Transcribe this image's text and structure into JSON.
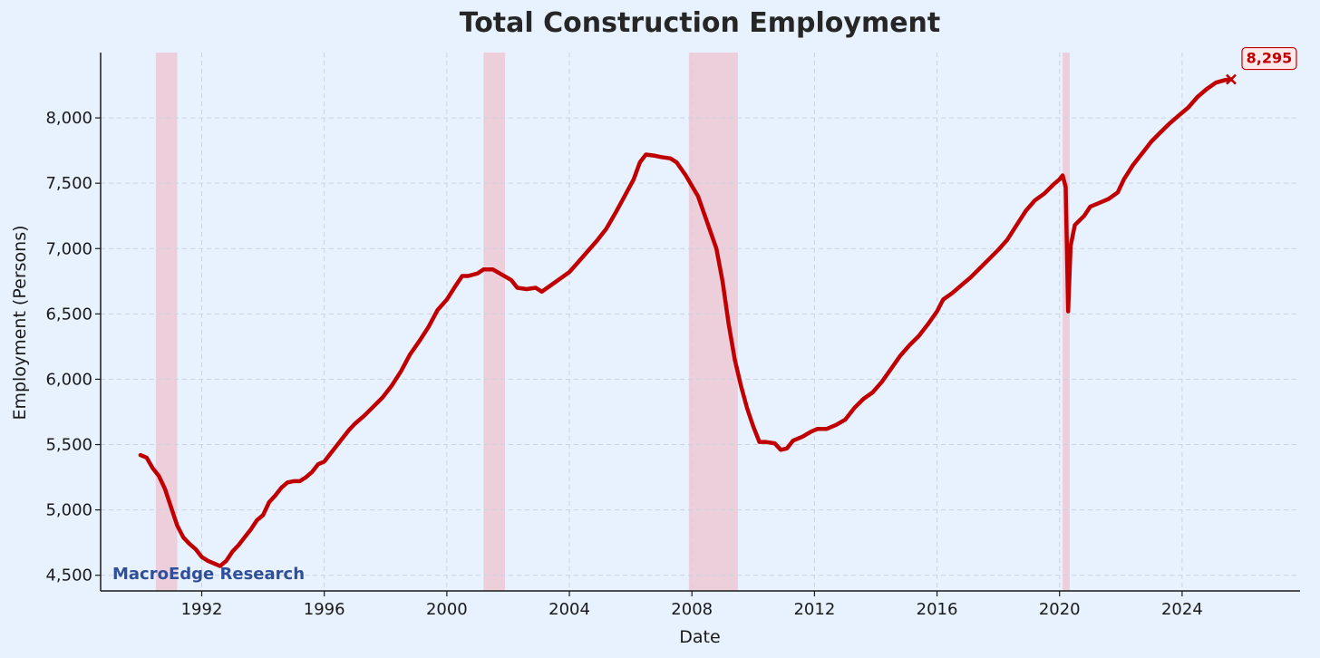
{
  "chart_data": {
    "type": "line",
    "title": "Total Construction Employment",
    "xlabel": "Date",
    "ylabel": "Employment (Persons)",
    "xlim": [
      1988.7,
      2027.85
    ],
    "ylim": [
      4380,
      8500
    ],
    "x_ticks": [
      1992,
      1996,
      2000,
      2004,
      2008,
      2012,
      2016,
      2020,
      2024
    ],
    "x_tick_labels": [
      "1992",
      "1996",
      "2000",
      "2004",
      "2008",
      "2012",
      "2016",
      "2020",
      "2024"
    ],
    "y_ticks": [
      4500,
      5000,
      5500,
      6000,
      6500,
      7000,
      7500,
      8000
    ],
    "y_tick_labels": [
      "4,500",
      "5,000",
      "5,500",
      "6,000",
      "6,500",
      "7,000",
      "7,500",
      "8,000"
    ],
    "grid": true,
    "recession_shading": [
      [
        1990.5,
        1991.2
      ],
      [
        2001.2,
        2001.9
      ],
      [
        2007.9,
        2009.5
      ],
      [
        2020.1,
        2020.33
      ]
    ],
    "watermark": "MacroEdge Research",
    "last_value_label": "8,295",
    "colors": {
      "line": "#c00000",
      "recession": "#f4a0ad",
      "background": "#e8f1fe"
    },
    "series": [
      {
        "values": [
          [
            1990.0,
            5420
          ],
          [
            1990.2,
            5400
          ],
          [
            1990.4,
            5320
          ],
          [
            1990.6,
            5260
          ],
          [
            1990.8,
            5160
          ],
          [
            1991.0,
            5020
          ],
          [
            1991.2,
            4880
          ],
          [
            1991.4,
            4790
          ],
          [
            1991.6,
            4740
          ],
          [
            1991.8,
            4700
          ],
          [
            1992.0,
            4640
          ],
          [
            1992.2,
            4610
          ],
          [
            1992.4,
            4590
          ],
          [
            1992.6,
            4570
          ],
          [
            1992.8,
            4610
          ],
          [
            1993.0,
            4680
          ],
          [
            1993.2,
            4730
          ],
          [
            1993.4,
            4790
          ],
          [
            1993.6,
            4850
          ],
          [
            1993.8,
            4920
          ],
          [
            1994.0,
            4960
          ],
          [
            1994.2,
            5060
          ],
          [
            1994.4,
            5110
          ],
          [
            1994.6,
            5170
          ],
          [
            1994.8,
            5210
          ],
          [
            1995.0,
            5220
          ],
          [
            1995.2,
            5220
          ],
          [
            1995.4,
            5250
          ],
          [
            1995.6,
            5290
          ],
          [
            1995.8,
            5350
          ],
          [
            1996.0,
            5370
          ],
          [
            1996.2,
            5430
          ],
          [
            1996.5,
            5520
          ],
          [
            1996.8,
            5610
          ],
          [
            1997.0,
            5660
          ],
          [
            1997.3,
            5720
          ],
          [
            1997.6,
            5790
          ],
          [
            1997.9,
            5860
          ],
          [
            1998.2,
            5950
          ],
          [
            1998.5,
            6060
          ],
          [
            1998.8,
            6190
          ],
          [
            1999.1,
            6290
          ],
          [
            1999.4,
            6400
          ],
          [
            1999.7,
            6530
          ],
          [
            2000.0,
            6610
          ],
          [
            2000.3,
            6720
          ],
          [
            2000.5,
            6790
          ],
          [
            2000.7,
            6790
          ],
          [
            2001.0,
            6810
          ],
          [
            2001.2,
            6840
          ],
          [
            2001.5,
            6840
          ],
          [
            2001.8,
            6800
          ],
          [
            2002.1,
            6760
          ],
          [
            2002.3,
            6700
          ],
          [
            2002.6,
            6690
          ],
          [
            2002.9,
            6700
          ],
          [
            2003.1,
            6670
          ],
          [
            2003.4,
            6720
          ],
          [
            2003.7,
            6770
          ],
          [
            2004.0,
            6820
          ],
          [
            2004.3,
            6900
          ],
          [
            2004.6,
            6980
          ],
          [
            2004.9,
            7060
          ],
          [
            2005.2,
            7150
          ],
          [
            2005.5,
            7270
          ],
          [
            2005.8,
            7400
          ],
          [
            2006.1,
            7530
          ],
          [
            2006.3,
            7660
          ],
          [
            2006.5,
            7720
          ],
          [
            2006.8,
            7710
          ],
          [
            2007.0,
            7700
          ],
          [
            2007.3,
            7690
          ],
          [
            2007.5,
            7660
          ],
          [
            2007.8,
            7560
          ],
          [
            2008.0,
            7480
          ],
          [
            2008.2,
            7400
          ],
          [
            2008.5,
            7200
          ],
          [
            2008.8,
            7000
          ],
          [
            2009.0,
            6750
          ],
          [
            2009.2,
            6420
          ],
          [
            2009.4,
            6150
          ],
          [
            2009.6,
            5950
          ],
          [
            2009.8,
            5780
          ],
          [
            2010.0,
            5640
          ],
          [
            2010.2,
            5520
          ],
          [
            2010.4,
            5520
          ],
          [
            2010.7,
            5510
          ],
          [
            2010.9,
            5460
          ],
          [
            2011.1,
            5470
          ],
          [
            2011.3,
            5530
          ],
          [
            2011.6,
            5560
          ],
          [
            2011.9,
            5600
          ],
          [
            2012.1,
            5620
          ],
          [
            2012.4,
            5620
          ],
          [
            2012.7,
            5650
          ],
          [
            2013.0,
            5690
          ],
          [
            2013.3,
            5780
          ],
          [
            2013.6,
            5850
          ],
          [
            2013.9,
            5900
          ],
          [
            2014.2,
            5980
          ],
          [
            2014.5,
            6080
          ],
          [
            2014.8,
            6180
          ],
          [
            2015.1,
            6260
          ],
          [
            2015.4,
            6330
          ],
          [
            2015.7,
            6420
          ],
          [
            2016.0,
            6520
          ],
          [
            2016.2,
            6610
          ],
          [
            2016.5,
            6660
          ],
          [
            2016.8,
            6720
          ],
          [
            2017.1,
            6780
          ],
          [
            2017.4,
            6850
          ],
          [
            2017.7,
            6920
          ],
          [
            2018.0,
            6990
          ],
          [
            2018.3,
            7070
          ],
          [
            2018.6,
            7180
          ],
          [
            2018.9,
            7290
          ],
          [
            2019.2,
            7370
          ],
          [
            2019.5,
            7420
          ],
          [
            2019.8,
            7490
          ],
          [
            2020.0,
            7530
          ],
          [
            2020.1,
            7560
          ],
          [
            2020.2,
            7470
          ],
          [
            2020.28,
            6520
          ],
          [
            2020.36,
            7020
          ],
          [
            2020.5,
            7180
          ],
          [
            2020.8,
            7250
          ],
          [
            2021.0,
            7320
          ],
          [
            2021.3,
            7350
          ],
          [
            2021.6,
            7380
          ],
          [
            2021.9,
            7430
          ],
          [
            2022.1,
            7530
          ],
          [
            2022.4,
            7640
          ],
          [
            2022.7,
            7730
          ],
          [
            2023.0,
            7820
          ],
          [
            2023.3,
            7890
          ],
          [
            2023.6,
            7960
          ],
          [
            2023.9,
            8020
          ],
          [
            2024.2,
            8080
          ],
          [
            2024.5,
            8160
          ],
          [
            2024.8,
            8220
          ],
          [
            2025.1,
            8270
          ],
          [
            2025.4,
            8290
          ],
          [
            2025.6,
            8295
          ]
        ]
      }
    ]
  }
}
